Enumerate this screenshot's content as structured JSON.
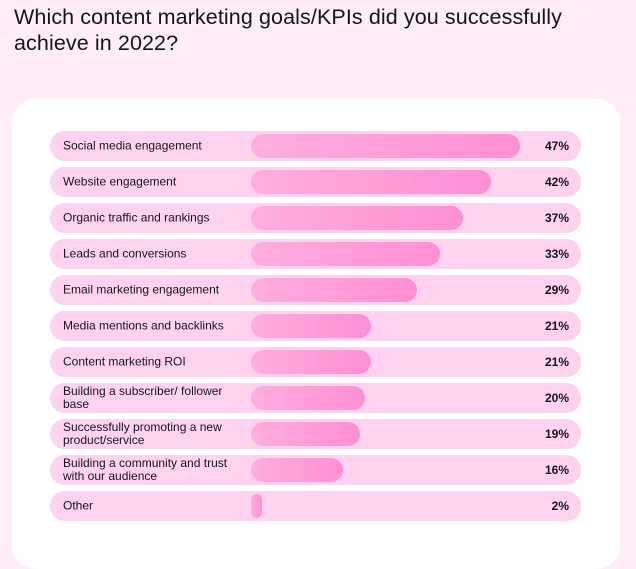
{
  "title": "Which content marketing goals/KPIs did you successfully achieve in 2022?",
  "colors": {
    "page_background": "#ffeef8",
    "card_background": "#ffffff",
    "row_background": "#ffd2ef",
    "bar_start": "#ffaedf",
    "bar_end": "#ff8fd3",
    "text": "#14141e"
  },
  "chart_data": {
    "type": "bar",
    "orientation": "horizontal",
    "title": "Which content marketing goals/KPIs did you successfully achieve in 2022?",
    "value_unit": "%",
    "xlim": [
      0,
      47
    ],
    "categories": [
      "Social media engagement",
      "Website engagement",
      "Organic traffic and rankings",
      "Leads and conversions",
      "Email marketing engagement",
      "Media mentions and backlinks",
      "Content marketing ROI",
      "Building a subscriber/ follower base",
      "Successfully promoting a new product/service",
      "Building a community and trust with our audience",
      "Other"
    ],
    "values": [
      47,
      42,
      37,
      33,
      29,
      21,
      21,
      20,
      19,
      16,
      2
    ],
    "value_labels": [
      "47%",
      "42%",
      "37%",
      "33%",
      "29%",
      "21%",
      "21%",
      "20%",
      "19%",
      "16%",
      "2%"
    ]
  }
}
